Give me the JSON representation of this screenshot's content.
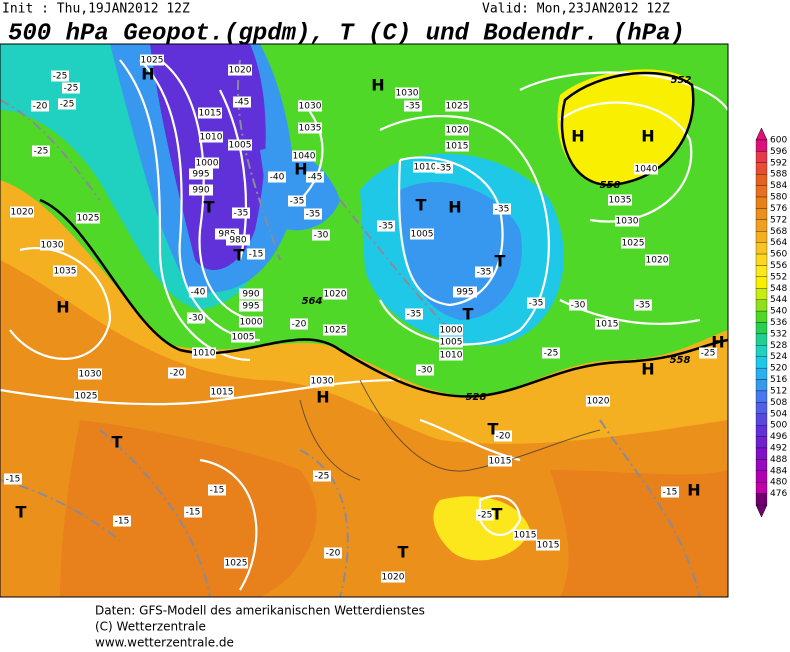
{
  "header": {
    "init": "Init : Thu,19JAN2012 12Z",
    "valid": "Valid: Mon,23JAN2012 12Z",
    "title": "500 hPa Geopot.(gpdm), T (C) und Bodendr. (hPa)"
  },
  "map": {
    "pressure_centers": [
      "H",
      "H",
      "H",
      "H",
      "T",
      "T",
      "H",
      "T",
      "H",
      "T",
      "T",
      "H",
      "H",
      "H",
      "T",
      "T",
      "T",
      "T",
      "T",
      "H",
      "H"
    ],
    "isobar_labels": [
      "1025",
      "1020",
      "1015",
      "1010",
      "1005",
      "1000",
      "995",
      "990",
      "985",
      "980",
      "990",
      "995",
      "1000",
      "1005",
      "1010",
      "1015",
      "1030",
      "1035",
      "1040",
      "1020",
      "1025",
      "1030",
      "1025",
      "1020",
      "1015",
      "1010",
      "1005",
      "995",
      "1000",
      "1005",
      "1010",
      "1015",
      "1020",
      "1025",
      "1030",
      "1035",
      "1040",
      "1030",
      "1030",
      "1025",
      "1020",
      "1025",
      "1030",
      "1035",
      "1020",
      "1015",
      "1015",
      "1015",
      "1025",
      "1020"
    ],
    "temperature_labels": [
      "-25",
      "-20",
      "-25",
      "-25",
      "-25",
      "-45",
      "-40",
      "-45",
      "-35",
      "-35",
      "-35",
      "-30",
      "-15",
      "-40",
      "-30",
      "-35",
      "-35",
      "-35",
      "-35",
      "-35",
      "-35",
      "-35",
      "-30",
      "-30",
      "-35",
      "-25",
      "-25",
      "-20",
      "-20",
      "-20",
      "-25",
      "-25",
      "-15",
      "-15",
      "-15",
      "-15",
      "-15",
      "-20"
    ],
    "geopotential_labels": [
      "552",
      "558",
      "564",
      "528",
      "558"
    ]
  },
  "colorbar": {
    "labels": [
      600,
      596,
      592,
      588,
      584,
      580,
      576,
      572,
      568,
      564,
      560,
      556,
      552,
      548,
      544,
      540,
      536,
      532,
      528,
      524,
      520,
      516,
      512,
      508,
      504,
      500,
      496,
      492,
      488,
      484,
      480,
      476
    ],
    "colors": [
      "#e0107a",
      "#e83a4a",
      "#e84c32",
      "#e86020",
      "#e87020",
      "#e8801c",
      "#ec901c",
      "#f0a020",
      "#f4b020",
      "#f8c424",
      "#fcd820",
      "#fce61c",
      "#f8f000",
      "#c8ec10",
      "#90e020",
      "#50d828",
      "#28d050",
      "#20d090",
      "#20d0c0",
      "#20c8e8",
      "#28b0f0",
      "#3898f0",
      "#4878f0",
      "#5060e8",
      "#5848e0",
      "#6030d8",
      "#7020d0",
      "#8010c8",
      "#9808c0",
      "#b000b0",
      "#c000a8",
      "#700070"
    ]
  },
  "footer": {
    "lines": [
      "Daten: GFS-Modell des amerikanischen Wetterdienstes",
      "(C) Wetterzentrale",
      "www.wetterzentrale.de"
    ]
  }
}
